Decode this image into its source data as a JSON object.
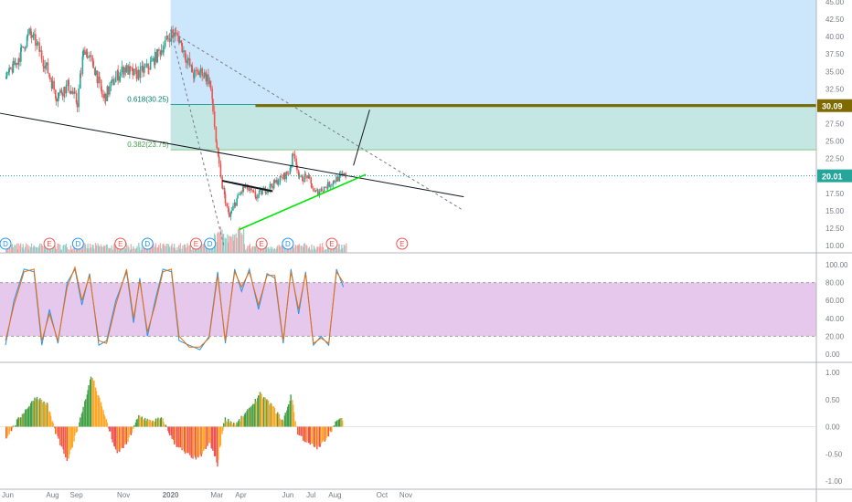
{
  "chart_data": [
    {
      "type": "candlestick",
      "title": "",
      "x_ticks": [
        "Jun",
        "Aug",
        "Sep",
        "Nov",
        "2020",
        "Mar",
        "Apr",
        "Jun",
        "Jul",
        "Aug",
        "Oct",
        "Nov"
      ],
      "y_ticks": [
        "10.00",
        "12.50",
        "15.00",
        "17.50",
        "20.00",
        "22.50",
        "25.00",
        "27.50",
        "30.00",
        "32.50",
        "35.00",
        "37.50",
        "40.00",
        "42.50",
        "45.00"
      ],
      "ylim": [
        9,
        45
      ],
      "grid": false,
      "price_path": {
        "x": [
          "2019-06-01",
          "2019-06-15",
          "2019-07-01",
          "2019-07-10",
          "2019-07-25",
          "2019-08-05",
          "2019-08-20",
          "2019-09-01",
          "2019-09-10",
          "2019-09-25",
          "2019-10-05",
          "2019-10-20",
          "2019-11-01",
          "2019-11-15",
          "2019-12-01",
          "2019-12-15",
          "2020-01-01",
          "2020-01-10",
          "2020-01-20",
          "2020-01-30",
          "2020-02-10",
          "2020-02-20",
          "2020-02-28",
          "2020-03-05",
          "2020-03-16",
          "2020-03-25",
          "2020-04-05",
          "2020-04-20",
          "2020-05-01",
          "2020-05-15",
          "2020-06-01",
          "2020-06-08",
          "2020-06-15",
          "2020-06-25",
          "2020-07-05",
          "2020-07-20",
          "2020-08-01",
          "2020-08-10"
        ],
        "close": [
          34.0,
          36.5,
          40.5,
          39.0,
          35.0,
          31.5,
          33.0,
          30.5,
          38.5,
          35.0,
          31.0,
          34.0,
          35.5,
          34.5,
          35.5,
          37.5,
          40.5,
          40.0,
          37.0,
          34.5,
          35.0,
          33.5,
          25.0,
          19.5,
          14.0,
          16.5,
          18.5,
          17.0,
          18.0,
          19.0,
          20.5,
          23.5,
          19.5,
          20.0,
          17.5,
          18.5,
          19.5,
          20.0
        ]
      },
      "last_price_label": "20.01",
      "fibonacci_box": {
        "levels": [
          {
            "label": "0.618(30.25)",
            "value": 30.25
          },
          {
            "label": "0.382(23.75)",
            "value": 23.75
          }
        ],
        "top": 45.5,
        "start": "2020-01-01"
      },
      "target_level": {
        "label": "30.09",
        "value": 30.09,
        "start": "2020-04-20",
        "end": "2021-01-15"
      },
      "trendlines": [
        {
          "name": "long-term-downtrend",
          "color": "#131722",
          "dashed": false,
          "from": [
            "2019-05-25",
            29.0
          ],
          "to": [
            "2021-01-15",
            17.0
          ]
        },
        {
          "name": "dashed-downtrend",
          "color": "#787b86",
          "dashed": true,
          "from": [
            "2020-01-05",
            40.5
          ],
          "to": [
            "2021-01-15",
            15.0
          ]
        },
        {
          "name": "crash-projection",
          "color": "#787b86",
          "dashed": true,
          "from": [
            "2020-01-01",
            41.0
          ],
          "to": [
            "2020-03-10",
            10.0
          ]
        },
        {
          "name": "resistance-black",
          "color": "#131722",
          "dashed": false,
          "from": [
            "2020-03-08",
            19.3
          ],
          "to": [
            "2020-05-12",
            17.8
          ]
        },
        {
          "name": "rising-support",
          "color": "#00e600",
          "dashed": false,
          "from": [
            "2020-03-30",
            12.3
          ],
          "to": [
            "2020-09-10",
            20.2
          ]
        },
        {
          "name": "breakout-projection",
          "color": "#131722",
          "dashed": false,
          "from": [
            "2020-08-25",
            21.5
          ],
          "to": [
            "2020-09-15",
            29.5
          ]
        }
      ],
      "volume_markers": [
        {
          "label": "D",
          "date": "2019-06-01"
        },
        {
          "label": "E",
          "date": "2019-07-28"
        },
        {
          "label": "D",
          "date": "2019-09-03"
        },
        {
          "label": "E",
          "date": "2019-10-28"
        },
        {
          "label": "D",
          "date": "2019-12-02"
        },
        {
          "label": "E",
          "date": "2020-02-03"
        },
        {
          "label": "D",
          "date": "2020-02-21"
        },
        {
          "label": "E",
          "date": "2020-04-28"
        },
        {
          "label": "D",
          "date": "2020-06-01"
        },
        {
          "label": "E",
          "date": "2020-07-28"
        },
        {
          "label": "E",
          "date": "2020-10-27"
        }
      ]
    },
    {
      "type": "line",
      "title": "",
      "y_ticks": [
        "0.00",
        "20.00",
        "40.00",
        "60.00",
        "80.00",
        "100.00"
      ],
      "ylim": [
        -5,
        107
      ],
      "band": [
        20,
        80
      ],
      "series": [
        {
          "color": "#2196f3",
          "x": [
            "2019-06-01",
            "2019-06-12",
            "2019-06-25",
            "2019-07-08",
            "2019-07-18",
            "2019-07-28",
            "2019-08-08",
            "2019-08-20",
            "2019-08-30",
            "2019-09-08",
            "2019-09-18",
            "2019-09-30",
            "2019-10-10",
            "2019-10-22",
            "2019-11-05",
            "2019-11-14",
            "2019-11-22",
            "2019-12-02",
            "2019-12-12",
            "2019-12-22",
            "2020-01-02",
            "2020-01-12",
            "2020-01-25",
            "2020-02-08",
            "2020-02-20",
            "2020-03-02",
            "2020-03-12",
            "2020-03-24",
            "2020-04-02",
            "2020-04-12",
            "2020-04-24",
            "2020-05-05",
            "2020-05-15",
            "2020-05-26",
            "2020-06-05",
            "2020-06-15",
            "2020-06-24",
            "2020-07-04",
            "2020-07-14",
            "2020-07-24",
            "2020-08-03",
            "2020-08-12"
          ],
          "y": [
            10,
            60,
            95,
            92,
            10,
            50,
            12,
            80,
            95,
            55,
            90,
            10,
            15,
            60,
            92,
            35,
            85,
            20,
            60,
            95,
            92,
            15,
            10,
            5,
            20,
            92,
            12,
            95,
            70,
            95,
            50,
            90,
            85,
            12,
            95,
            45,
            92,
            10,
            20,
            10,
            95,
            75
          ]
        },
        {
          "color": "#ef6c00",
          "x": [
            "2019-06-01",
            "2019-06-12",
            "2019-06-25",
            "2019-07-08",
            "2019-07-18",
            "2019-07-28",
            "2019-08-08",
            "2019-08-20",
            "2019-08-30",
            "2019-09-08",
            "2019-09-18",
            "2019-09-30",
            "2019-10-10",
            "2019-10-22",
            "2019-11-05",
            "2019-11-14",
            "2019-11-22",
            "2019-12-02",
            "2019-12-12",
            "2019-12-22",
            "2020-01-02",
            "2020-01-12",
            "2020-01-25",
            "2020-02-08",
            "2020-02-20",
            "2020-03-02",
            "2020-03-12",
            "2020-03-24",
            "2020-04-02",
            "2020-04-12",
            "2020-04-24",
            "2020-05-05",
            "2020-05-15",
            "2020-05-26",
            "2020-06-05",
            "2020-06-15",
            "2020-06-24",
            "2020-07-04",
            "2020-07-14",
            "2020-07-24",
            "2020-08-03",
            "2020-08-12"
          ],
          "y": [
            15,
            55,
            92,
            95,
            15,
            45,
            15,
            75,
            97,
            60,
            88,
            15,
            12,
            55,
            95,
            40,
            82,
            25,
            55,
            92,
            95,
            20,
            8,
            8,
            18,
            88,
            15,
            92,
            75,
            92,
            55,
            88,
            88,
            15,
            92,
            50,
            90,
            12,
            18,
            12,
            92,
            80
          ]
        }
      ]
    },
    {
      "type": "bar",
      "title": "",
      "y_ticks": [
        "-1.00",
        "-0.50",
        "0.00",
        "0.50",
        "1.00"
      ],
      "ylim": [
        -1.05,
        1.05
      ],
      "x": [
        "2019-06-01",
        "2019-06-20",
        "2019-07-10",
        "2019-07-25",
        "2019-08-05",
        "2019-08-20",
        "2019-09-05",
        "2019-09-20",
        "2019-10-05",
        "2019-10-22",
        "2019-11-05",
        "2019-11-20",
        "2019-12-05",
        "2019-12-20",
        "2020-01-05",
        "2020-01-20",
        "2020-02-05",
        "2020-02-20",
        "2020-03-01",
        "2020-03-10",
        "2020-03-25",
        "2020-04-10",
        "2020-04-25",
        "2020-05-10",
        "2020-05-25",
        "2020-06-05",
        "2020-06-12",
        "2020-06-25",
        "2020-07-10",
        "2020-07-25",
        "2020-08-05",
        "2020-08-12"
      ],
      "values": [
        -0.2,
        0.2,
        0.55,
        0.4,
        -0.15,
        -0.65,
        0.15,
        0.95,
        0.3,
        -0.5,
        -0.3,
        0.2,
        0.1,
        0.15,
        -0.3,
        -0.5,
        -0.6,
        -0.3,
        -0.7,
        0.15,
        0.05,
        0.3,
        0.6,
        0.4,
        0.1,
        0.6,
        -0.1,
        -0.3,
        -0.4,
        -0.1,
        0.15,
        0.1
      ]
    }
  ]
}
